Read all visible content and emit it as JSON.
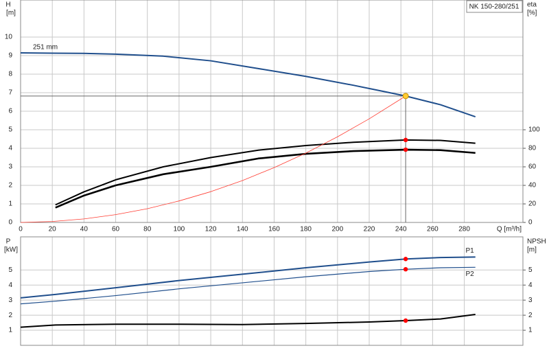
{
  "chart_data": [
    {
      "type": "line",
      "title": "NK 150-280/251",
      "ylabel": "H",
      "yunit": "[m]",
      "y2label": "eta",
      "y2unit": "[%]",
      "xlabel": "Q [m³/h]",
      "xlim": [
        0,
        317
      ],
      "xticks": [
        0,
        20,
        40,
        60,
        80,
        100,
        120,
        140,
        160,
        180,
        200,
        220,
        240,
        260,
        280
      ],
      "ylim": [
        0,
        12
      ],
      "yticks": [
        0,
        1,
        2,
        3,
        4,
        5,
        6,
        7,
        8,
        9,
        10
      ],
      "y2lim": [
        0,
        240
      ],
      "y2ticks": [
        0,
        20,
        40,
        60,
        80,
        100
      ],
      "grid": true,
      "series": [
        {
          "name": "251 mm",
          "color": "#1f4e8c",
          "width": 2,
          "x": [
            0,
            22,
            40,
            60,
            90,
            120,
            150,
            180,
            210,
            230,
            243,
            265,
            287
          ],
          "values": [
            9.15,
            9.13,
            9.12,
            9.08,
            8.97,
            8.72,
            8.3,
            7.88,
            7.4,
            7.05,
            6.82,
            6.35,
            5.7
          ]
        },
        {
          "color": "#000000",
          "width": 2,
          "axis": "y2",
          "x": [
            22,
            40,
            60,
            90,
            120,
            150,
            180,
            210,
            243,
            265,
            287
          ],
          "values": [
            19,
            33,
            46,
            60,
            70,
            78,
            83,
            86.5,
            89,
            88.5,
            85.5
          ]
        },
        {
          "color": "#000000",
          "width": 2.6,
          "axis": "y2",
          "x": [
            22,
            40,
            60,
            90,
            120,
            150,
            180,
            210,
            243,
            265,
            287
          ],
          "values": [
            16,
            29,
            40,
            52,
            60,
            69,
            74,
            77,
            78.5,
            78,
            75
          ]
        },
        {
          "color": "#ff3b30",
          "width": 0.8,
          "x": [
            0,
            20,
            40,
            60,
            80,
            100,
            120,
            140,
            160,
            180,
            200,
            220,
            243
          ],
          "values": [
            0,
            0.05,
            0.19,
            0.42,
            0.74,
            1.16,
            1.66,
            2.26,
            2.96,
            3.74,
            4.62,
            5.59,
            6.82
          ]
        }
      ],
      "markers": [
        {
          "x": 243,
          "y": 6.82,
          "color": "#ffcc33"
        },
        {
          "x": 243,
          "y": 89,
          "axis": "y2",
          "color": "#ff0000"
        },
        {
          "x": 243,
          "y": 78.5,
          "axis": "y2",
          "color": "#ff0000"
        }
      ]
    },
    {
      "type": "line",
      "ylabel": "P",
      "yunit": "[kW]",
      "y2label": "NPSH",
      "y2unit": "[m]",
      "xlim": [
        0,
        317
      ],
      "xticks": [
        0,
        20,
        40,
        60,
        80,
        100,
        120,
        140,
        160,
        180,
        200,
        220,
        240,
        260,
        280
      ],
      "ylim": [
        0,
        7.2
      ],
      "yticks": [
        1,
        2,
        3,
        4,
        5
      ],
      "y2lim": [
        0,
        7.2
      ],
      "y2ticks": [
        1,
        2,
        3,
        4,
        5
      ],
      "grid": true,
      "series": [
        {
          "name": "P1",
          "color": "#1f4e8c",
          "width": 2,
          "x": [
            0,
            22,
            60,
            100,
            140,
            180,
            220,
            243,
            265,
            287
          ],
          "values": [
            3.15,
            3.38,
            3.82,
            4.3,
            4.72,
            5.15,
            5.53,
            5.73,
            5.83,
            5.86
          ]
        },
        {
          "name": "P2",
          "color": "#1f4e8c",
          "width": 1.2,
          "x": [
            0,
            22,
            60,
            100,
            140,
            180,
            220,
            243,
            265,
            287
          ],
          "values": [
            2.75,
            2.93,
            3.3,
            3.75,
            4.15,
            4.55,
            4.9,
            5.05,
            5.15,
            5.18
          ]
        },
        {
          "color": "#000000",
          "width": 2,
          "axis": "y2",
          "x": [
            0,
            22,
            60,
            100,
            140,
            180,
            220,
            243,
            265,
            287
          ],
          "values": [
            1.2,
            1.35,
            1.4,
            1.4,
            1.38,
            1.45,
            1.55,
            1.64,
            1.75,
            2.05
          ]
        }
      ],
      "markers": [
        {
          "x": 243,
          "y": 5.73,
          "color": "#ff0000"
        },
        {
          "x": 243,
          "y": 5.05,
          "color": "#ff0000"
        },
        {
          "x": 243,
          "y": 1.64,
          "axis": "y2",
          "color": "#ff0000"
        }
      ]
    }
  ]
}
